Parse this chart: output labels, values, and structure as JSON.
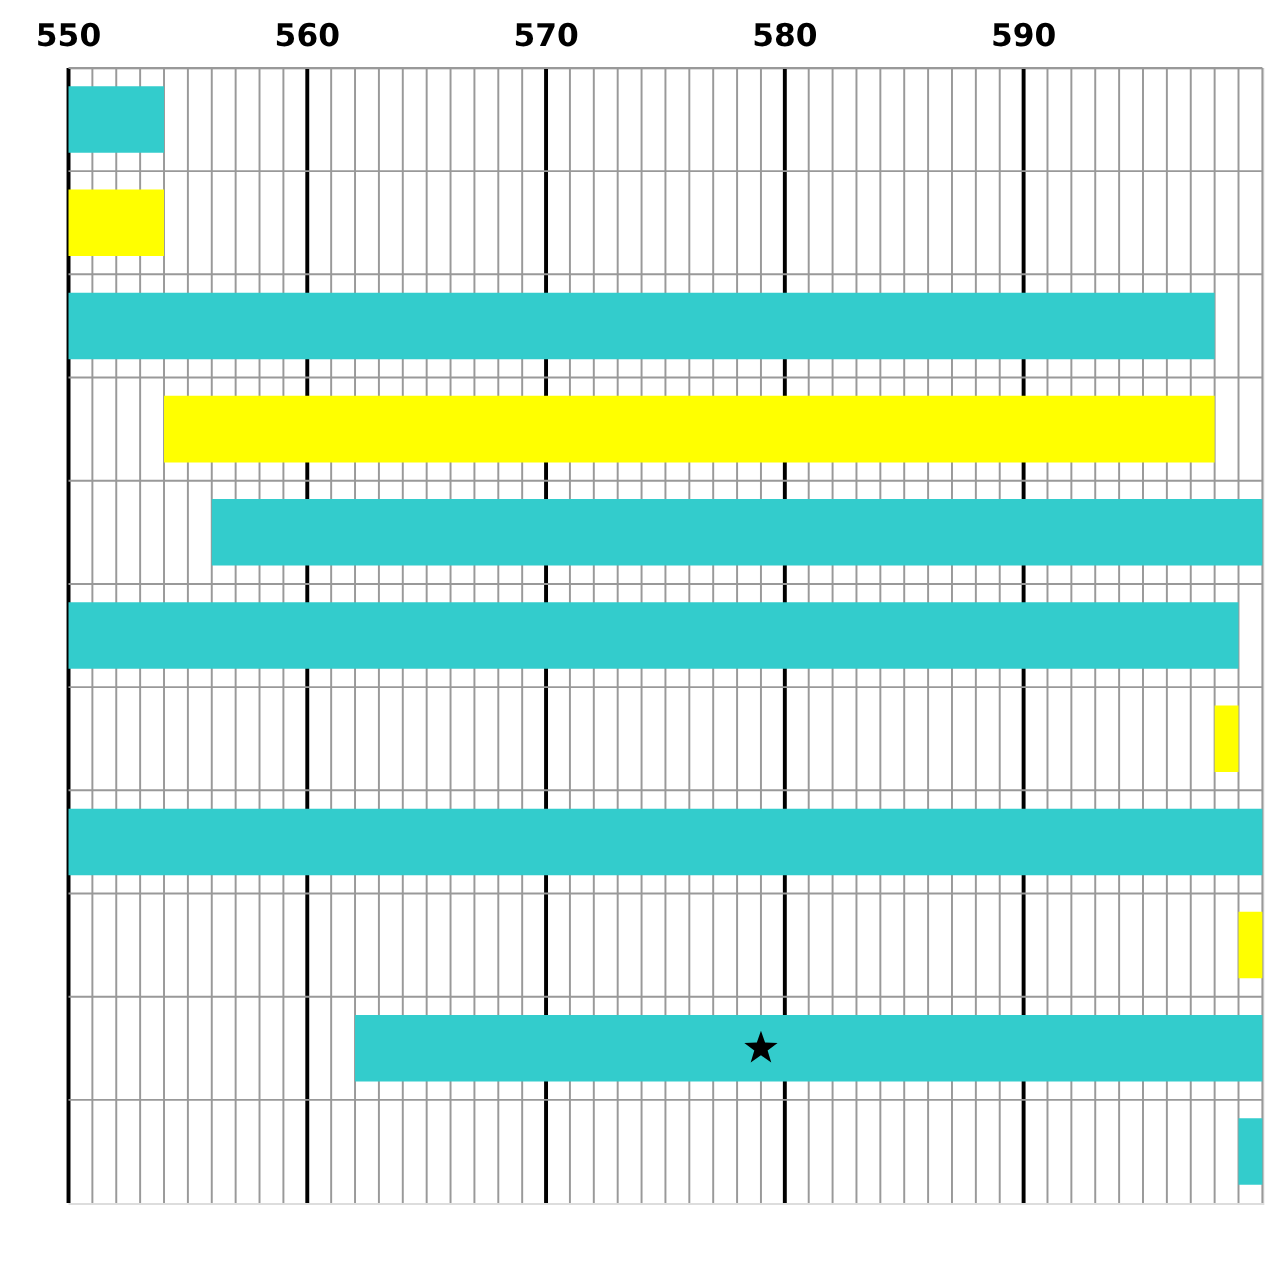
{
  "chart_data": {
    "type": "bar",
    "orientation": "horizontal",
    "grid": true,
    "categories": [
      null,
      null,
      null,
      null,
      null,
      null,
      null,
      null,
      null,
      null,
      null
    ],
    "series": [
      {
        "type": "bar",
        "base": [
          550,
          550,
          550,
          554,
          556,
          550,
          598,
          550,
          599,
          562,
          599
        ],
        "colors": [
          "#33cccc",
          "#ffff00",
          "#33cccc",
          "#ffff00",
          "#33cccc",
          "#33cccc",
          "#ffff00",
          "#33cccc",
          "#ffff00",
          "#33cccc",
          "#33cccc"
        ],
        "values": [
          4,
          4,
          48,
          44,
          44,
          49,
          1,
          50,
          1,
          38,
          1
        ]
      },
      {
        "type": "scatter",
        "marker": "star",
        "color": "#000000",
        "values": [
          null,
          null,
          null,
          null,
          null,
          null,
          null,
          null,
          null,
          579,
          null
        ]
      }
    ],
    "xlim": [
      550,
      600
    ],
    "xticks": [
      550,
      {
        "value": 551,
        "label": null
      },
      {
        "value": 552,
        "label": null
      },
      {
        "value": 553,
        "label": null
      },
      {
        "value": 554,
        "label": null
      },
      {
        "value": 555,
        "label": null
      },
      {
        "value": 556,
        "label": null
      },
      {
        "value": 557,
        "label": null
      },
      {
        "value": 558,
        "label": null
      },
      {
        "value": 559,
        "label": null
      },
      560,
      {
        "value": 561,
        "label": null
      },
      {
        "value": 562,
        "label": null
      },
      {
        "value": 563,
        "label": null
      },
      {
        "value": 564,
        "label": null
      },
      {
        "value": 565,
        "label": null
      },
      {
        "value": 566,
        "label": null
      },
      {
        "value": 567,
        "label": null
      },
      {
        "value": 568,
        "label": null
      },
      {
        "value": 569,
        "label": null
      },
      570,
      {
        "value": 571,
        "label": null
      },
      {
        "value": 572,
        "label": null
      },
      {
        "value": 573,
        "label": null
      },
      {
        "value": 574,
        "label": null
      },
      {
        "value": 575,
        "label": null
      },
      {
        "value": 576,
        "label": null
      },
      {
        "value": 577,
        "label": null
      },
      {
        "value": 578,
        "label": null
      },
      {
        "value": 579,
        "label": null
      },
      580,
      {
        "value": 581,
        "label": null
      },
      {
        "value": 582,
        "label": null
      },
      {
        "value": 583,
        "label": null
      },
      {
        "value": 584,
        "label": null
      },
      {
        "value": 585,
        "label": null
      },
      {
        "value": 586,
        "label": null
      },
      {
        "value": 587,
        "label": null
      },
      {
        "value": 588,
        "label": null
      },
      {
        "value": 589,
        "label": null
      },
      590,
      {
        "value": 591,
        "label": null
      },
      {
        "value": 592,
        "label": null
      },
      {
        "value": 593,
        "label": null
      },
      {
        "value": 594,
        "label": null
      },
      {
        "value": 595,
        "label": null
      },
      {
        "value": 596,
        "label": null
      },
      {
        "value": 597,
        "label": null
      },
      {
        "value": 598,
        "label": null
      },
      {
        "value": 599,
        "label": null
      },
      {
        "value": 600,
        "label": null
      }
    ]
  }
}
